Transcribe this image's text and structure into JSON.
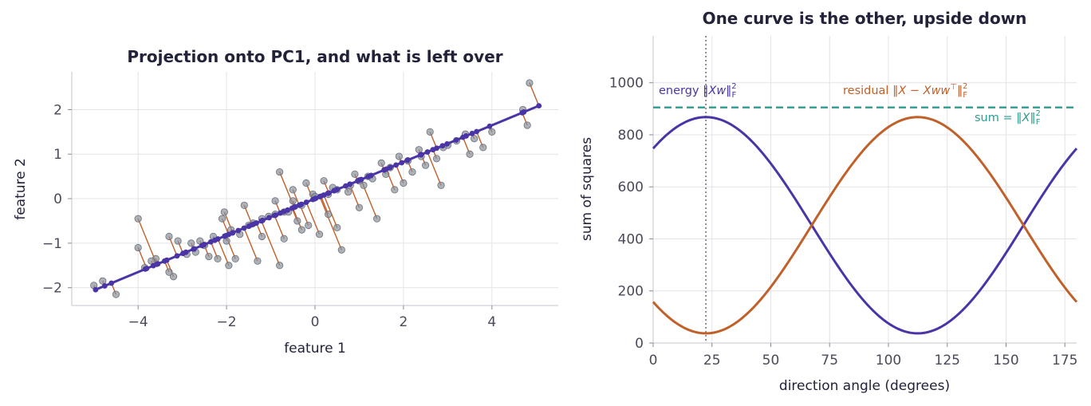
{
  "chart_data": [
    {
      "type": "scatter",
      "title": "Projection onto PC1, and what is left over",
      "xlabel": "feature 1",
      "ylabel": "feature 2",
      "xlim": [
        -5.5,
        5.5
      ],
      "ylim": [
        -2.4,
        2.85
      ],
      "xticks": [
        -4,
        -2,
        0,
        2,
        4
      ],
      "yticks": [
        -2,
        -1,
        0,
        1,
        2
      ],
      "xtick_labels": [
        "−4",
        "−2",
        "0",
        "2",
        "4"
      ],
      "ytick_labels": [
        "−2",
        "−1",
        "0",
        "1",
        "2"
      ],
      "grid": true,
      "pc1_direction_degrees": 22.4,
      "colors": {
        "points": "#8a909a",
        "projection": "#4b35a6",
        "residual": "#c0602a"
      },
      "points": [
        [
          -5.0,
          -1.95
        ],
        [
          -4.8,
          -1.85
        ],
        [
          -4.5,
          -2.15
        ],
        [
          -4.0,
          -0.45
        ],
        [
          -4.0,
          -1.1
        ],
        [
          -3.85,
          -1.55
        ],
        [
          -3.6,
          -1.35
        ],
        [
          -3.3,
          -1.65
        ],
        [
          -3.2,
          -1.75
        ],
        [
          -3.3,
          -0.85
        ],
        [
          -3.1,
          -0.95
        ],
        [
          -2.9,
          -1.25
        ],
        [
          -2.7,
          -1.2
        ],
        [
          -2.5,
          -1.05
        ],
        [
          -2.4,
          -1.3
        ],
        [
          -2.3,
          -0.85
        ],
        [
          -2.2,
          -1.35
        ],
        [
          -2.0,
          -0.95
        ],
        [
          -1.95,
          -1.5
        ],
        [
          -2.05,
          -0.3
        ],
        [
          -2.1,
          -0.45
        ],
        [
          -1.8,
          -1.35
        ],
        [
          -1.7,
          -0.8
        ],
        [
          -1.6,
          -0.15
        ],
        [
          -1.5,
          -0.6
        ],
        [
          -1.3,
          -1.4
        ],
        [
          -1.2,
          -0.85
        ],
        [
          -1.05,
          -0.4
        ],
        [
          -0.9,
          -0.05
        ],
        [
          -0.8,
          -1.5
        ],
        [
          -0.7,
          -0.9
        ],
        [
          -0.8,
          0.6
        ],
        [
          -0.6,
          -0.3
        ],
        [
          -0.5,
          0.2
        ],
        [
          -0.4,
          -0.5
        ],
        [
          -0.3,
          -0.7
        ],
        [
          -0.2,
          0.35
        ],
        [
          -0.15,
          -0.6
        ],
        [
          -0.05,
          0.1
        ],
        [
          0.1,
          -0.8
        ],
        [
          0.2,
          0.4
        ],
        [
          0.3,
          -0.35
        ],
        [
          0.4,
          0.25
        ],
        [
          0.5,
          -0.65
        ],
        [
          0.6,
          -1.15
        ],
        [
          0.75,
          0.15
        ],
        [
          0.9,
          0.55
        ],
        [
          1.0,
          -0.2
        ],
        [
          1.1,
          0.3
        ],
        [
          1.3,
          0.45
        ],
        [
          1.4,
          -0.45
        ],
        [
          1.5,
          0.8
        ],
        [
          1.6,
          0.55
        ],
        [
          1.8,
          0.2
        ],
        [
          1.9,
          0.95
        ],
        [
          2.0,
          0.35
        ],
        [
          2.2,
          0.6
        ],
        [
          2.35,
          1.1
        ],
        [
          2.5,
          0.75
        ],
        [
          2.6,
          1.5
        ],
        [
          2.75,
          0.9
        ],
        [
          2.85,
          0.3
        ],
        [
          3.0,
          1.2
        ],
        [
          3.2,
          1.3
        ],
        [
          3.4,
          1.45
        ],
        [
          3.5,
          1.0
        ],
        [
          3.8,
          1.15
        ],
        [
          4.0,
          1.5
        ],
        [
          4.7,
          2.0
        ],
        [
          4.8,
          1.65
        ],
        [
          4.85,
          2.6
        ],
        [
          -0.5,
          -0.05
        ],
        [
          0.0,
          0.05
        ],
        [
          0.3,
          0.1
        ],
        [
          -1.2,
          -0.45
        ],
        [
          1.2,
          0.5
        ],
        [
          -2.6,
          -0.95
        ],
        [
          2.1,
          0.85
        ],
        [
          0.8,
          0.3
        ],
        [
          -0.3,
          -0.15
        ],
        [
          -3.7,
          -1.4
        ],
        [
          3.6,
          1.35
        ],
        [
          -1.9,
          -0.7
        ],
        [
          1.7,
          0.7
        ],
        [
          -0.9,
          -0.35
        ],
        [
          2.9,
          1.15
        ],
        [
          -2.8,
          -1.0
        ],
        [
          0.5,
          0.2
        ],
        [
          -1.4,
          -0.55
        ],
        [
          1.0,
          0.4
        ],
        [
          -0.7,
          -0.3
        ],
        [
          2.4,
          0.95
        ]
      ]
    },
    {
      "type": "line",
      "title": "One curve is the other, upside down",
      "xlabel": "direction angle (degrees)",
      "ylabel": "sum of squares",
      "xlim": [
        0,
        180
      ],
      "ylim": [
        0,
        1180
      ],
      "xticks": [
        0,
        25,
        50,
        75,
        100,
        125,
        150,
        175
      ],
      "yticks": [
        0,
        200,
        400,
        600,
        800,
        1000
      ],
      "grid": true,
      "total_sum": 905,
      "energy_max": 868,
      "energy_min": 37,
      "peak_angle_degrees": 22.4,
      "series": [
        {
          "label_prefix": "energy ",
          "label_math": "‖Xw‖",
          "label_sub": "F",
          "label_sup": "2",
          "color": "#4b35a6"
        },
        {
          "label_prefix": "residual ",
          "label_math": "‖X − Xww",
          "label_top": "⊤",
          "label_math2": "‖",
          "label_sub": "F",
          "label_sup": "2",
          "color": "#c0602a"
        }
      ],
      "sum_line": {
        "label_prefix": "sum ",
        "label_math": "= ‖X‖",
        "label_sub": "F",
        "label_sup": "2",
        "color": "#2a9d8f"
      }
    }
  ]
}
